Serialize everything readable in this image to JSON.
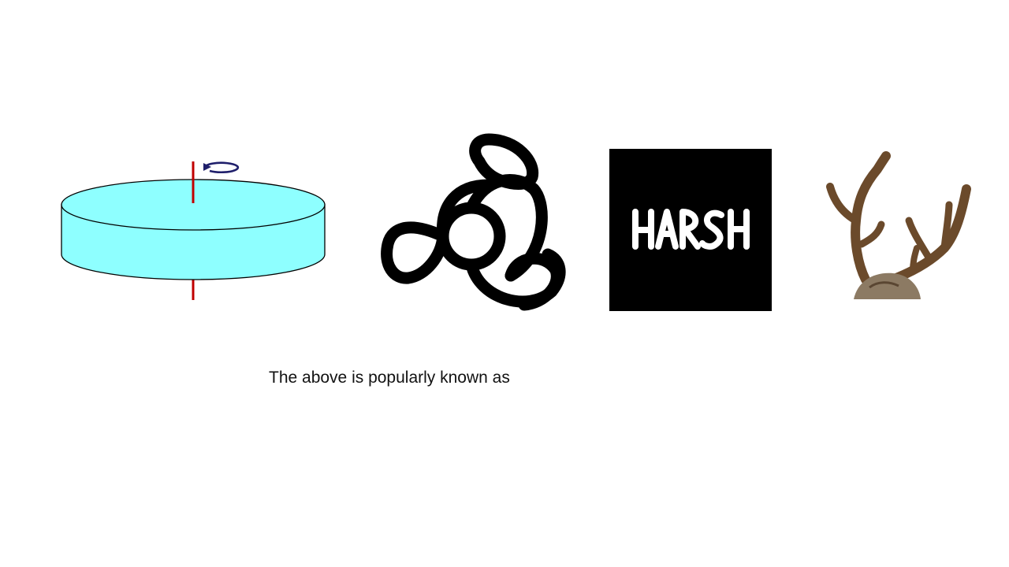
{
  "slide": {
    "caption": "The above is popularly known as"
  },
  "images": [
    {
      "name": "spinning-disc",
      "description_icon": "rotating-cylinder-icon",
      "fill_color": "#8EFFFF",
      "axis_color": "#C00000",
      "arrow_color": "#1F1F6B"
    },
    {
      "name": "triskelion-symbol",
      "description_icon": "three-loop-symbol-icon",
      "stroke_color": "#000000"
    },
    {
      "name": "harsh-word-image",
      "word": "HARSH",
      "background_color": "#000000",
      "text_color": "#FFFFFF"
    },
    {
      "name": "deer-antlers-photo",
      "description_icon": "antlers-icon",
      "antler_color": "#6B4A2B"
    }
  ]
}
